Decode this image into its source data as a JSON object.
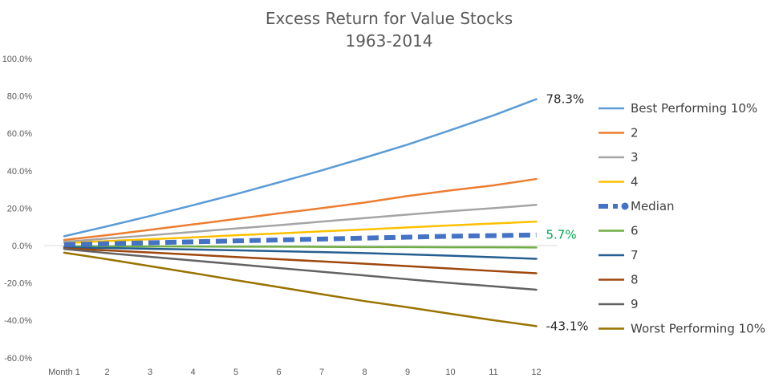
{
  "chart_data": {
    "type": "line",
    "title": "Excess Return for Value Stocks",
    "subtitle": "1963-2014",
    "xlabel": "",
    "ylabel": "",
    "categories": [
      "Month 1",
      "2",
      "3",
      "4",
      "5",
      "6",
      "7",
      "8",
      "9",
      "10",
      "11",
      "12"
    ],
    "y_tick_labels": [
      "100.0%",
      "80.0%",
      "60.0%",
      "40.0%",
      "20.0%",
      "0.0%",
      "-20.0%",
      "-40.0%",
      "-60.0%"
    ],
    "ylim": [
      -60,
      100
    ],
    "y_ticks": [
      100,
      80,
      60,
      40,
      20,
      0,
      -20,
      -40,
      -60
    ],
    "grid": false,
    "legend_placement": "right",
    "series": [
      {
        "name": "Best Performing 10%",
        "color": "#5B9BD5",
        "dashed": false,
        "values": [
          5.0,
          10.3,
          15.8,
          21.6,
          27.5,
          33.8,
          40.2,
          47.0,
          54.0,
          61.7,
          69.6,
          78.3
        ]
      },
      {
        "name": "2",
        "color": "#ED7D31",
        "dashed": false,
        "values": [
          3.0,
          5.6,
          8.4,
          11.3,
          14.2,
          17.2,
          20.0,
          23.0,
          26.5,
          29.5,
          32.2,
          35.6
        ]
      },
      {
        "name": "3",
        "color": "#A5A5A5",
        "dashed": false,
        "values": [
          2.0,
          3.8,
          5.5,
          7.3,
          9.1,
          10.9,
          12.8,
          14.7,
          16.6,
          18.4,
          20.0,
          21.8
        ]
      },
      {
        "name": "4",
        "color": "#FFC000",
        "dashed": false,
        "values": [
          1.3,
          2.4,
          3.4,
          4.4,
          5.5,
          6.5,
          7.6,
          8.6,
          9.7,
          10.8,
          11.8,
          12.8
        ]
      },
      {
        "name": "Median",
        "color": "#4472C4",
        "dashed": true,
        "values": [
          0.5,
          1.0,
          1.5,
          2.0,
          2.5,
          3.0,
          3.5,
          4.0,
          4.5,
          5.0,
          5.3,
          5.7
        ]
      },
      {
        "name": "6",
        "color": "#70AD47",
        "dashed": false,
        "values": [
          -0.3,
          -0.4,
          -0.5,
          -0.5,
          -0.6,
          -0.6,
          -0.7,
          -0.8,
          -0.8,
          -0.9,
          -0.9,
          -1.0
        ]
      },
      {
        "name": "7",
        "color": "#255E91",
        "dashed": false,
        "values": [
          -1.0,
          -1.3,
          -1.7,
          -2.1,
          -2.5,
          -3.0,
          -3.5,
          -4.0,
          -4.7,
          -5.4,
          -6.2,
          -7.1
        ]
      },
      {
        "name": "8",
        "color": "#9E480E",
        "dashed": false,
        "values": [
          -1.5,
          -2.6,
          -3.7,
          -4.9,
          -6.1,
          -7.3,
          -8.5,
          -9.7,
          -11.0,
          -12.3,
          -13.6,
          -14.8
        ]
      },
      {
        "name": "9",
        "color": "#636363",
        "dashed": false,
        "values": [
          -1.8,
          -4.0,
          -6.0,
          -8.0,
          -10.0,
          -12.0,
          -14.0,
          -16.0,
          -18.0,
          -20.0,
          -21.8,
          -23.6
        ]
      },
      {
        "name": "Worst Performing 10%",
        "color": "#997300",
        "dashed": false,
        "values": [
          -3.8,
          -7.3,
          -11.0,
          -14.7,
          -18.5,
          -22.2,
          -26.0,
          -29.7,
          -33.0,
          -36.5,
          -39.9,
          -43.1
        ]
      }
    ],
    "annotations": [
      {
        "text": "78.3%",
        "series": "Best Performing 10%",
        "color": "#262626"
      },
      {
        "text": "5.7%",
        "series": "Median",
        "color": "#00A651"
      },
      {
        "text": "-43.1%",
        "series": "Worst Performing 10%",
        "color": "#262626"
      }
    ]
  }
}
